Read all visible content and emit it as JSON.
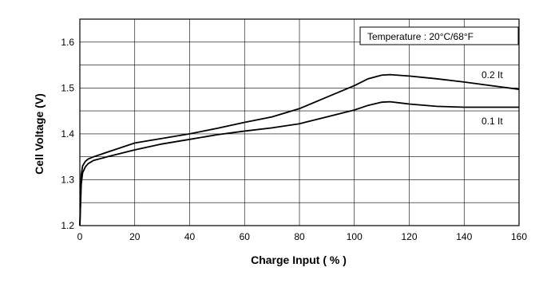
{
  "chart_data": {
    "type": "line",
    "title": "",
    "xlabel": "Charge Input ( % )",
    "ylabel": "Cell Voltage (V)",
    "xlim": [
      0,
      160
    ],
    "ylim": [
      1.2,
      1.65
    ],
    "x_ticks": [
      0,
      20,
      40,
      60,
      80,
      100,
      120,
      140,
      160
    ],
    "y_ticks": [
      1.2,
      1.3,
      1.4,
      1.5,
      1.6
    ],
    "y_tick_labels": [
      "1.2",
      "1.3",
      "1.4",
      "1.5",
      "1.6"
    ],
    "grid": true,
    "annotation": "Temperature : 20°C/68°F",
    "series": [
      {
        "name": "0.2 It",
        "x": [
          0,
          0.5,
          1,
          2,
          3,
          5,
          10,
          20,
          30,
          40,
          50,
          60,
          70,
          80,
          90,
          100,
          105,
          110,
          113,
          120,
          130,
          140,
          150,
          160
        ],
        "y": [
          1.2,
          1.31,
          1.33,
          1.34,
          1.345,
          1.35,
          1.36,
          1.38,
          1.39,
          1.4,
          1.412,
          1.425,
          1.437,
          1.455,
          1.48,
          1.505,
          1.52,
          1.528,
          1.529,
          1.526,
          1.52,
          1.513,
          1.505,
          1.497
        ]
      },
      {
        "name": "0.1 It",
        "x": [
          0,
          0.5,
          1,
          2,
          3,
          5,
          10,
          20,
          30,
          40,
          50,
          60,
          70,
          80,
          90,
          100,
          105,
          110,
          113,
          120,
          130,
          140,
          150,
          160
        ],
        "y": [
          1.2,
          1.29,
          1.315,
          1.328,
          1.335,
          1.342,
          1.35,
          1.365,
          1.378,
          1.388,
          1.398,
          1.406,
          1.413,
          1.422,
          1.437,
          1.452,
          1.462,
          1.469,
          1.47,
          1.465,
          1.46,
          1.458,
          1.458,
          1.458
        ]
      }
    ]
  }
}
